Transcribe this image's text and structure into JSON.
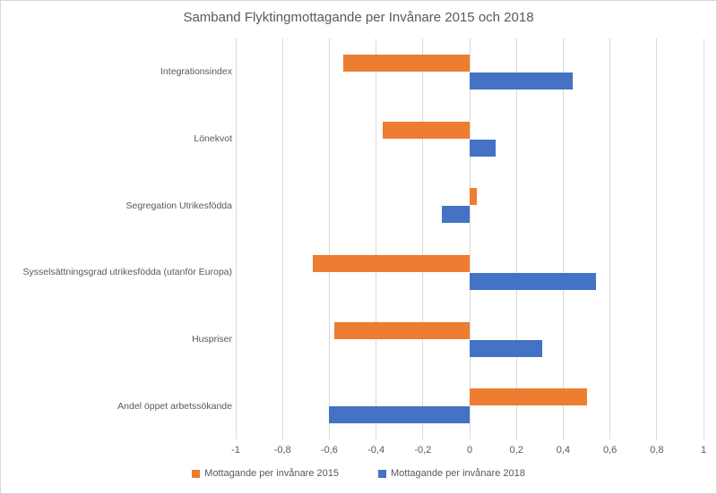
{
  "chart": {
    "background": "#FFFFFF",
    "border_color": "#D7D7D7",
    "text_color": "#595959",
    "gridline_color": "#D9D9D9"
  },
  "chart_data": {
    "type": "bar",
    "orientation": "horizontal",
    "title": "Samband Flyktingmottagande per Invånare 2015 och 2018",
    "categories": [
      "Integrationsindex",
      "Lönekvot",
      "Segregation Utrikesfödda",
      "Sysselsättningsgrad utrikesfödda (utanför Europa)",
      "Huspriser",
      "Andel öppet arbetssökande"
    ],
    "series": [
      {
        "name": "Mottagande per invånare 2015",
        "color": "#ED7D31",
        "values": [
          -0.54,
          -0.37,
          0.03,
          -0.67,
          -0.58,
          0.5
        ]
      },
      {
        "name": "Mottagande per invånare 2018",
        "color": "#4472C4",
        "values": [
          0.44,
          0.11,
          -0.12,
          0.54,
          0.31,
          -0.6
        ]
      }
    ],
    "xlabel": "",
    "ylabel": "",
    "xlim": [
      -1,
      1
    ],
    "x_ticks": [
      -1,
      -0.8,
      -0.6,
      -0.4,
      -0.2,
      0,
      0.2,
      0.4,
      0.6,
      0.8,
      1
    ],
    "x_tick_labels": [
      "-1",
      "-0,8",
      "-0,6",
      "-0,4",
      "-0,2",
      "0",
      "0,2",
      "0,4",
      "0,6",
      "0,8",
      "1"
    ],
    "grid": true,
    "legend_position": "bottom"
  }
}
